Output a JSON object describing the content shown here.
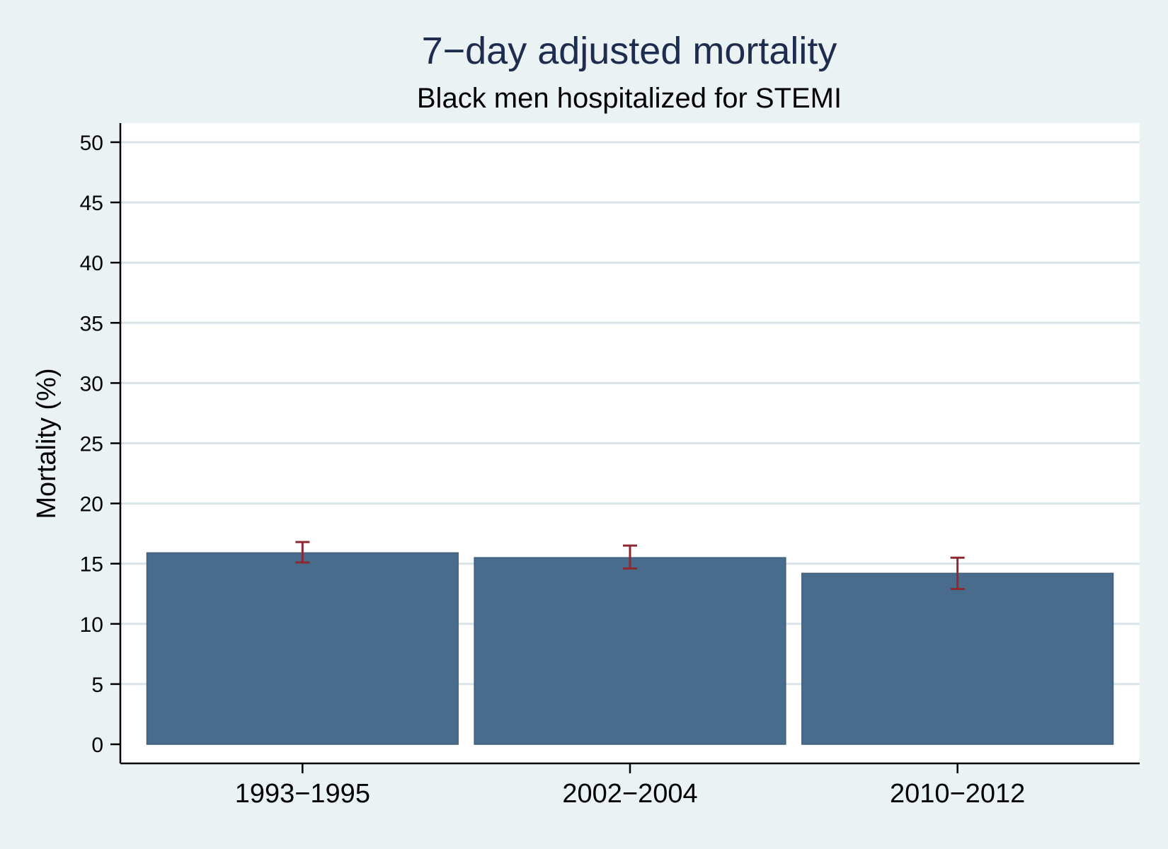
{
  "colors": {
    "background": "#eaf2f3",
    "plot_background": "#ffffff",
    "bar_fill": "#496c8c",
    "error_bar": "#8b2a32",
    "title": "#1e2d4f",
    "gridline": "#d8e4e8",
    "axis": "#000000"
  },
  "chart_data": {
    "type": "bar",
    "title": "7−day adjusted mortality",
    "subtitle": "Black men hospitalized for STEMI",
    "xlabel": "",
    "ylabel": "Mortality (%)",
    "categories": [
      "1993−1995",
      "2002−2004",
      "2010−2012"
    ],
    "values": [
      15.9,
      15.5,
      14.2
    ],
    "error_low": [
      15.1,
      14.6,
      12.9
    ],
    "error_high": [
      16.8,
      16.5,
      15.5
    ],
    "ylim": [
      0,
      50
    ],
    "yticks": [
      0,
      5,
      10,
      15,
      20,
      25,
      30,
      35,
      40,
      45,
      50
    ],
    "grid": true
  }
}
